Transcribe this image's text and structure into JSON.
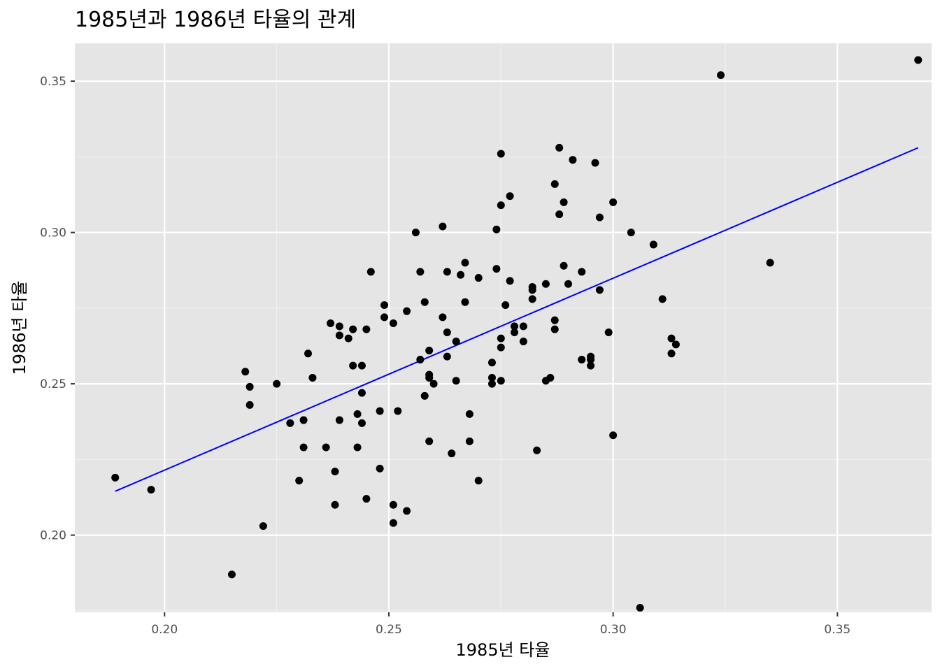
{
  "chart_data": {
    "type": "scatter",
    "title": "1985년과 1986년 타율의 관계",
    "xlabel": "1985년 타율",
    "ylabel": "1986년 타율",
    "xlim": [
      0.18,
      0.371
    ],
    "ylim": [
      0.1745,
      0.3625
    ],
    "x_ticks": [
      0.2,
      0.25,
      0.3,
      0.35
    ],
    "x_tick_labels": [
      "0.20",
      "0.25",
      "0.30",
      "0.35"
    ],
    "y_ticks": [
      0.2,
      0.25,
      0.3,
      0.35
    ],
    "y_tick_labels": [
      "0.20",
      "0.25",
      "0.30",
      "0.35"
    ],
    "grid": true,
    "panel_background": "#e5e5e5",
    "point_color": "#000000",
    "fit_line": {
      "color": "#0000ff",
      "x": [
        0.189,
        0.368
      ],
      "y": [
        0.2145,
        0.328
      ]
    },
    "points": [
      [
        0.189,
        0.219
      ],
      [
        0.197,
        0.215
      ],
      [
        0.215,
        0.187
      ],
      [
        0.218,
        0.254
      ],
      [
        0.219,
        0.249
      ],
      [
        0.219,
        0.243
      ],
      [
        0.222,
        0.203
      ],
      [
        0.225,
        0.25
      ],
      [
        0.228,
        0.237
      ],
      [
        0.23,
        0.218
      ],
      [
        0.231,
        0.238
      ],
      [
        0.231,
        0.229
      ],
      [
        0.232,
        0.26
      ],
      [
        0.233,
        0.252
      ],
      [
        0.236,
        0.229
      ],
      [
        0.237,
        0.27
      ],
      [
        0.238,
        0.221
      ],
      [
        0.238,
        0.21
      ],
      [
        0.239,
        0.269
      ],
      [
        0.239,
        0.266
      ],
      [
        0.239,
        0.238
      ],
      [
        0.241,
        0.265
      ],
      [
        0.242,
        0.268
      ],
      [
        0.242,
        0.256
      ],
      [
        0.243,
        0.24
      ],
      [
        0.243,
        0.229
      ],
      [
        0.244,
        0.256
      ],
      [
        0.244,
        0.247
      ],
      [
        0.244,
        0.237
      ],
      [
        0.245,
        0.268
      ],
      [
        0.245,
        0.212
      ],
      [
        0.246,
        0.287
      ],
      [
        0.248,
        0.241
      ],
      [
        0.248,
        0.222
      ],
      [
        0.249,
        0.276
      ],
      [
        0.249,
        0.272
      ],
      [
        0.251,
        0.27
      ],
      [
        0.251,
        0.21
      ],
      [
        0.251,
        0.204
      ],
      [
        0.252,
        0.241
      ],
      [
        0.254,
        0.274
      ],
      [
        0.254,
        0.208
      ],
      [
        0.256,
        0.3
      ],
      [
        0.257,
        0.287
      ],
      [
        0.257,
        0.258
      ],
      [
        0.258,
        0.277
      ],
      [
        0.258,
        0.246
      ],
      [
        0.259,
        0.261
      ],
      [
        0.259,
        0.253
      ],
      [
        0.259,
        0.252
      ],
      [
        0.259,
        0.231
      ],
      [
        0.26,
        0.25
      ],
      [
        0.262,
        0.302
      ],
      [
        0.262,
        0.272
      ],
      [
        0.263,
        0.287
      ],
      [
        0.263,
        0.267
      ],
      [
        0.263,
        0.259
      ],
      [
        0.264,
        0.227
      ],
      [
        0.265,
        0.264
      ],
      [
        0.265,
        0.251
      ],
      [
        0.266,
        0.286
      ],
      [
        0.267,
        0.29
      ],
      [
        0.267,
        0.277
      ],
      [
        0.268,
        0.24
      ],
      [
        0.268,
        0.231
      ],
      [
        0.27,
        0.285
      ],
      [
        0.27,
        0.218
      ],
      [
        0.273,
        0.257
      ],
      [
        0.273,
        0.252
      ],
      [
        0.273,
        0.25
      ],
      [
        0.274,
        0.301
      ],
      [
        0.274,
        0.288
      ],
      [
        0.275,
        0.326
      ],
      [
        0.275,
        0.309
      ],
      [
        0.275,
        0.265
      ],
      [
        0.275,
        0.262
      ],
      [
        0.275,
        0.251
      ],
      [
        0.276,
        0.276
      ],
      [
        0.277,
        0.312
      ],
      [
        0.277,
        0.284
      ],
      [
        0.278,
        0.269
      ],
      [
        0.278,
        0.267
      ],
      [
        0.28,
        0.269
      ],
      [
        0.28,
        0.264
      ],
      [
        0.282,
        0.282
      ],
      [
        0.282,
        0.281
      ],
      [
        0.282,
        0.278
      ],
      [
        0.283,
        0.228
      ],
      [
        0.285,
        0.283
      ],
      [
        0.285,
        0.251
      ],
      [
        0.286,
        0.252
      ],
      [
        0.287,
        0.316
      ],
      [
        0.287,
        0.271
      ],
      [
        0.287,
        0.268
      ],
      [
        0.288,
        0.328
      ],
      [
        0.288,
        0.306
      ],
      [
        0.289,
        0.31
      ],
      [
        0.289,
        0.289
      ],
      [
        0.29,
        0.283
      ],
      [
        0.291,
        0.324
      ],
      [
        0.293,
        0.287
      ],
      [
        0.293,
        0.258
      ],
      [
        0.295,
        0.259
      ],
      [
        0.295,
        0.258
      ],
      [
        0.295,
        0.256
      ],
      [
        0.296,
        0.323
      ],
      [
        0.297,
        0.305
      ],
      [
        0.297,
        0.281
      ],
      [
        0.299,
        0.267
      ],
      [
        0.3,
        0.31
      ],
      [
        0.3,
        0.233
      ],
      [
        0.304,
        0.3
      ],
      [
        0.306,
        0.176
      ],
      [
        0.309,
        0.296
      ],
      [
        0.311,
        0.278
      ],
      [
        0.313,
        0.265
      ],
      [
        0.313,
        0.26
      ],
      [
        0.314,
        0.263
      ],
      [
        0.324,
        0.352
      ],
      [
        0.335,
        0.29
      ],
      [
        0.368,
        0.357
      ]
    ]
  }
}
